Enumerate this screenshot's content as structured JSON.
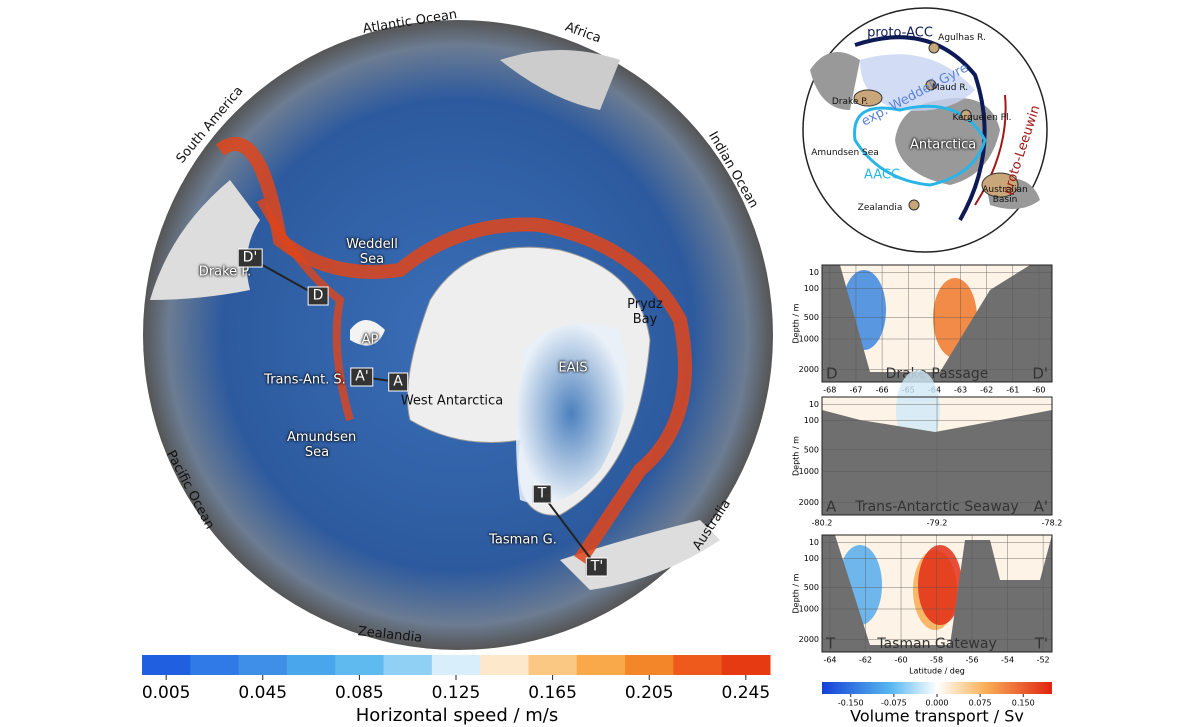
{
  "main_map": {
    "labels": [
      "Atlantic Ocean",
      "Africa",
      "Indian Ocean",
      "South America",
      "Pacific Ocean",
      "Zealandia",
      "Australia",
      "Weddell Sea",
      "Drake P.",
      "D'",
      "D",
      "AP",
      "Trans-Ant. S.",
      "A'",
      "A",
      "West Antarctica",
      "EAIS",
      "Prydz Bay",
      "Amundsen Sea",
      "Tasman G.",
      "T",
      "T'"
    ],
    "colorbar": {
      "lim": [
        -0.005,
        0.255
      ],
      "ticks": [
        0.005,
        0.045,
        0.085,
        0.125,
        0.165,
        0.205,
        0.245
      ],
      "colors": [
        "#1f5fe0",
        "#2f7ae6",
        "#3f8fe8",
        "#4aa6ec",
        "#5fbaf0",
        "#8fd0f4",
        "#d8eefa",
        "#fde8cc",
        "#fbc883",
        "#f9a84a",
        "#f4862a",
        "#ee5a1c",
        "#e63a12"
      ],
      "label": "Horizontal speed / m/s"
    }
  },
  "inset_map": {
    "labels": [
      "proto-ACC",
      "Agulhas R.",
      "exp. Weddell Gyre",
      "Drake P.",
      "Maud R.",
      "Kerguelen Pl.",
      "Amundsen Sea",
      "Antarctica",
      "proto-Leeuwin",
      "AACC",
      "Zealandia",
      "Australian Basin"
    ]
  },
  "chart_data": [
    {
      "type": "section",
      "title": "Drake Passage",
      "start": "D",
      "end": "D'",
      "ylabel": "Depth / m",
      "yscale": "sqrt",
      "ylim": [
        0,
        2500
      ],
      "yticks": [
        10,
        100,
        500,
        1000,
        2000
      ],
      "xlim": [
        -68.3,
        -59.5
      ],
      "xticks": [
        -68,
        -67,
        -66,
        -65,
        -64,
        -63,
        -62,
        -61,
        -60
      ]
    },
    {
      "type": "section",
      "title": "Trans-Antarctic Seaway",
      "start": "A",
      "end": "A'",
      "ylabel": "Depth / m",
      "yscale": "sqrt",
      "ylim": [
        0,
        2500
      ],
      "yticks": [
        10,
        100,
        500,
        1000,
        2000
      ],
      "xlim": [
        -80.2,
        -78.2
      ],
      "xticks": [
        -80.2,
        -79.2,
        -78.2
      ]
    },
    {
      "type": "section",
      "title": "Tasman Gateway",
      "start": "T",
      "end": "T'",
      "ylabel": "Depth / m",
      "xlabel": "Latitude / deg",
      "yscale": "sqrt",
      "ylim": [
        0,
        2500
      ],
      "yticks": [
        10,
        100,
        500,
        1000,
        2000
      ],
      "xlim": [
        -64.45,
        -51.5
      ],
      "xticks": [
        -64,
        -62,
        -60,
        -58,
        -56,
        -54,
        -52
      ]
    }
  ],
  "transport_colorbar": {
    "lim": [
      -0.2,
      0.2
    ],
    "ticks": [
      {
        "value": -0.15,
        "label": "-0.150"
      },
      {
        "value": -0.075,
        "label": "-0.075"
      },
      {
        "value": 0,
        "label": "0.000"
      },
      {
        "value": 0.075,
        "label": "0.075"
      },
      {
        "value": 0.15,
        "label": "0.150"
      }
    ],
    "label": "Volume transport / Sv"
  }
}
